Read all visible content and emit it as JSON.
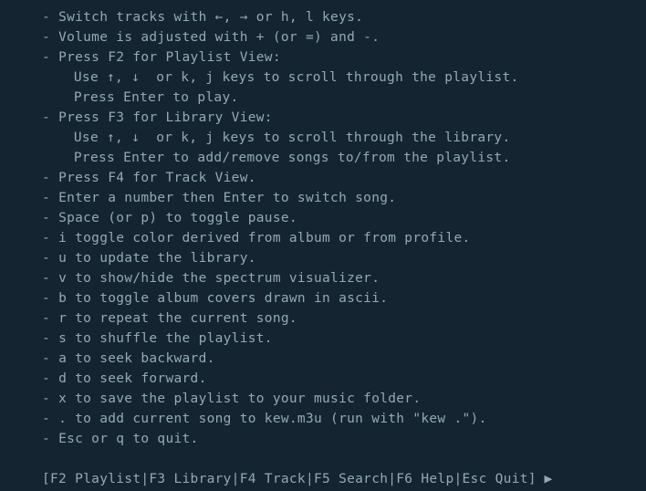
{
  "colors": {
    "background": "#142431",
    "text": "#92aab7"
  },
  "help": {
    "lines": [
      {
        "t": "bullet",
        "text": "Switch tracks with ←, → or h, l keys."
      },
      {
        "t": "bullet",
        "text": "Volume is adjusted with + (or =) and -."
      },
      {
        "t": "bullet",
        "text": "Press F2 for Playlist View:"
      },
      {
        "t": "sub",
        "text": "Use ↑, ↓  or k, j keys to scroll through the playlist."
      },
      {
        "t": "sub",
        "text": "Press Enter to play."
      },
      {
        "t": "bullet",
        "text": "Press F3 for Library View:"
      },
      {
        "t": "sub",
        "text": "Use ↑, ↓  or k, j keys to scroll through the library."
      },
      {
        "t": "sub",
        "text": "Press Enter to add/remove songs to/from the playlist."
      },
      {
        "t": "bullet",
        "text": "Press F4 for Track View."
      },
      {
        "t": "bullet",
        "text": "Enter a number then Enter to switch song."
      },
      {
        "t": "bullet",
        "text": "Space (or p) to toggle pause."
      },
      {
        "t": "bullet",
        "text": "i toggle color derived from album or from profile."
      },
      {
        "t": "bullet",
        "text": "u to update the library."
      },
      {
        "t": "bullet",
        "text": "v to show/hide the spectrum visualizer."
      },
      {
        "t": "bullet",
        "text": "b to toggle album covers drawn in ascii."
      },
      {
        "t": "bullet",
        "text": "r to repeat the current song."
      },
      {
        "t": "bullet",
        "text": "s to shuffle the playlist."
      },
      {
        "t": "bullet",
        "text": "a to seek backward."
      },
      {
        "t": "bullet",
        "text": "d to seek forward."
      },
      {
        "t": "bullet",
        "text": "x to save the playlist to your music folder."
      },
      {
        "t": "bullet",
        "text": ". to add current song to kew.m3u (run with \"kew .\")."
      },
      {
        "t": "bullet",
        "text": "Esc or q to quit."
      }
    ]
  },
  "footer": {
    "items": [
      "F2 Playlist",
      "F3 Library",
      "F4 Track",
      "F5 Search",
      "F6 Help",
      "Esc Quit"
    ],
    "play_icon": "▶"
  }
}
